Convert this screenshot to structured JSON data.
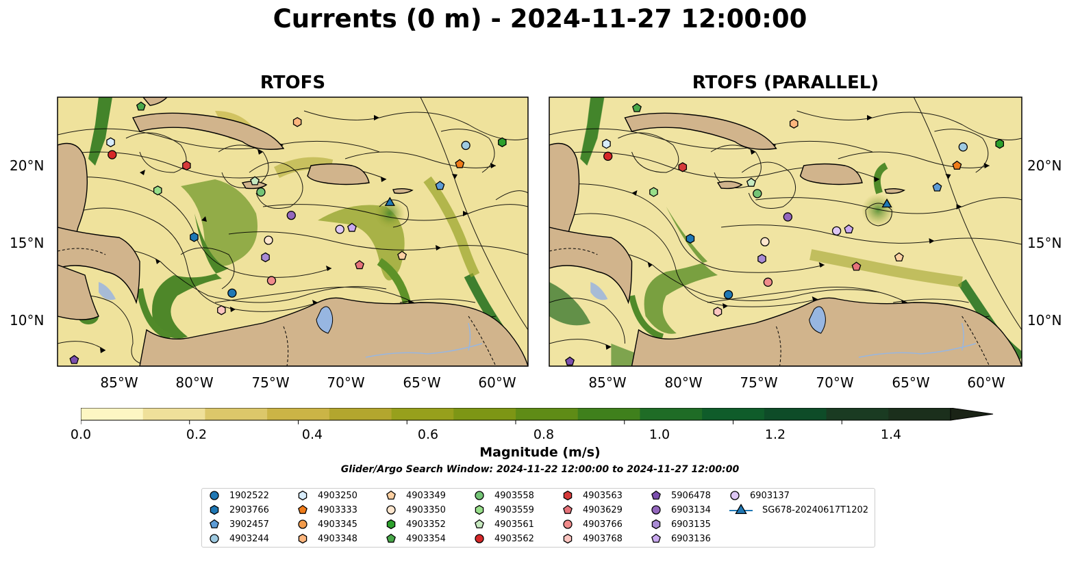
{
  "title": "Currents (0 m) - 2024-11-27 12:00:00",
  "panels": [
    {
      "title": "RTOFS"
    },
    {
      "title": "RTOFS (PARALLEL)"
    }
  ],
  "axes": {
    "lat_ticks": [
      "10°N",
      "15°N",
      "20°N"
    ],
    "lon_ticks": [
      "85°W",
      "80°W",
      "75°W",
      "70°W",
      "65°W",
      "60°W"
    ]
  },
  "colorbar": {
    "label": "Magnitude (m/s)",
    "ticks": [
      "0.0",
      "0.2",
      "0.4",
      "0.6",
      "0.8",
      "1.0",
      "1.2",
      "1.4"
    ],
    "range": [
      0,
      1.6
    ],
    "extend": "max",
    "colors": [
      "#fdf6c3",
      "#efe09a",
      "#dcc76a",
      "#cbb446",
      "#b3a62e",
      "#97a01c",
      "#7d9615",
      "#5f8c16",
      "#3f801c",
      "#1f6c26",
      "#0f5c2a",
      "#0e4c28",
      "#1a3b22",
      "#1b2f1c",
      "#1a2316"
    ]
  },
  "search_window": "Glider/Argo Search Window: 2024-11-22 12:00:00 to 2024-11-27 12:00:00",
  "chart_data": {
    "type": "map",
    "projection": "PlateCarree",
    "lon_range": [
      -89,
      -58
    ],
    "lat_range": [
      7,
      24.3
    ],
    "variable": "surface current magnitude (m/s) with streamlines",
    "colors": {
      "land": "#d1b48c",
      "lakes": "#97b6e1",
      "water_low": "#fdf6c3",
      "water_high": "#1a2316"
    },
    "platforms": [
      {
        "id": "1902522",
        "marker": "circle",
        "color": "#1f77b4",
        "lon": -77.5,
        "lat": 11.7
      },
      {
        "id": "2903766",
        "marker": "hexagon",
        "color": "#1f77b4",
        "lon": -80.0,
        "lat": 15.3
      },
      {
        "id": "3902457",
        "marker": "pentagon",
        "color": "#5d9cd6",
        "lon": -63.8,
        "lat": 18.6
      },
      {
        "id": "4903244",
        "marker": "circle",
        "color": "#9ecae1",
        "lon": -62.1,
        "lat": 21.2
      },
      {
        "id": "4903250",
        "marker": "hexagon",
        "color": "#d7ecfb",
        "lon": -85.5,
        "lat": 21.4
      },
      {
        "id": "4903333",
        "marker": "pentagon",
        "color": "#f07c1a",
        "lon": -62.5,
        "lat": 20.0
      },
      {
        "id": "4903345",
        "marker": "circle",
        "color": "#f29b4b",
        "lon": null,
        "lat": null
      },
      {
        "id": "4903348",
        "marker": "hexagon",
        "color": "#fdb67e",
        "lon": -73.2,
        "lat": 22.7
      },
      {
        "id": "4903349",
        "marker": "pentagon",
        "color": "#fdd0a2",
        "lon": -66.3,
        "lat": 14.1
      },
      {
        "id": "4903350",
        "marker": "circle",
        "color": "#fee6ce",
        "lon": -75.1,
        "lat": 15.1
      },
      {
        "id": "4903352",
        "marker": "hexagon",
        "color": "#2ca02c",
        "lon": -59.7,
        "lat": 21.4
      },
      {
        "id": "4903354",
        "marker": "pentagon",
        "color": "#49a84a",
        "lon": -83.5,
        "lat": 23.7
      },
      {
        "id": "4903558",
        "marker": "circle",
        "color": "#74c476",
        "lon": -75.6,
        "lat": 18.2
      },
      {
        "id": "4903559",
        "marker": "hexagon",
        "color": "#98df8a",
        "lon": -82.4,
        "lat": 18.3
      },
      {
        "id": "4903561",
        "marker": "pentagon",
        "color": "#c7e9c0",
        "lon": -76.0,
        "lat": 18.9
      },
      {
        "id": "4903562",
        "marker": "circle",
        "color": "#d62728",
        "lon": -85.4,
        "lat": 20.6
      },
      {
        "id": "4903563",
        "marker": "hexagon",
        "color": "#d63a3a",
        "lon": -80.5,
        "lat": 19.9
      },
      {
        "id": "4903629",
        "marker": "pentagon",
        "color": "#e6737a",
        "lon": -69.1,
        "lat": 13.5
      },
      {
        "id": "4903766",
        "marker": "circle",
        "color": "#f08b8b",
        "lon": -74.9,
        "lat": 12.5
      },
      {
        "id": "4903768",
        "marker": "hexagon",
        "color": "#fcc5c0",
        "lon": -78.2,
        "lat": 10.6
      },
      {
        "id": "5906478",
        "marker": "pentagon",
        "color": "#7b4fae",
        "lon": -87.9,
        "lat": 7.4
      },
      {
        "id": "6903134",
        "marker": "circle",
        "color": "#9467bd",
        "lon": -73.6,
        "lat": 16.7
      },
      {
        "id": "6903135",
        "marker": "hexagon",
        "color": "#a98bd4",
        "lon": -75.3,
        "lat": 14.0
      },
      {
        "id": "6903136",
        "marker": "pentagon",
        "color": "#c9a9ef",
        "lon": -69.6,
        "lat": 15.9
      },
      {
        "id": "6903137",
        "marker": "circle",
        "color": "#dec7f4",
        "lon": -70.4,
        "lat": 15.8
      },
      {
        "id": "SG678-20240617T1202",
        "marker": "triangle",
        "color": "#1f77b4",
        "lon": -67.1,
        "lat": 17.5
      }
    ]
  }
}
